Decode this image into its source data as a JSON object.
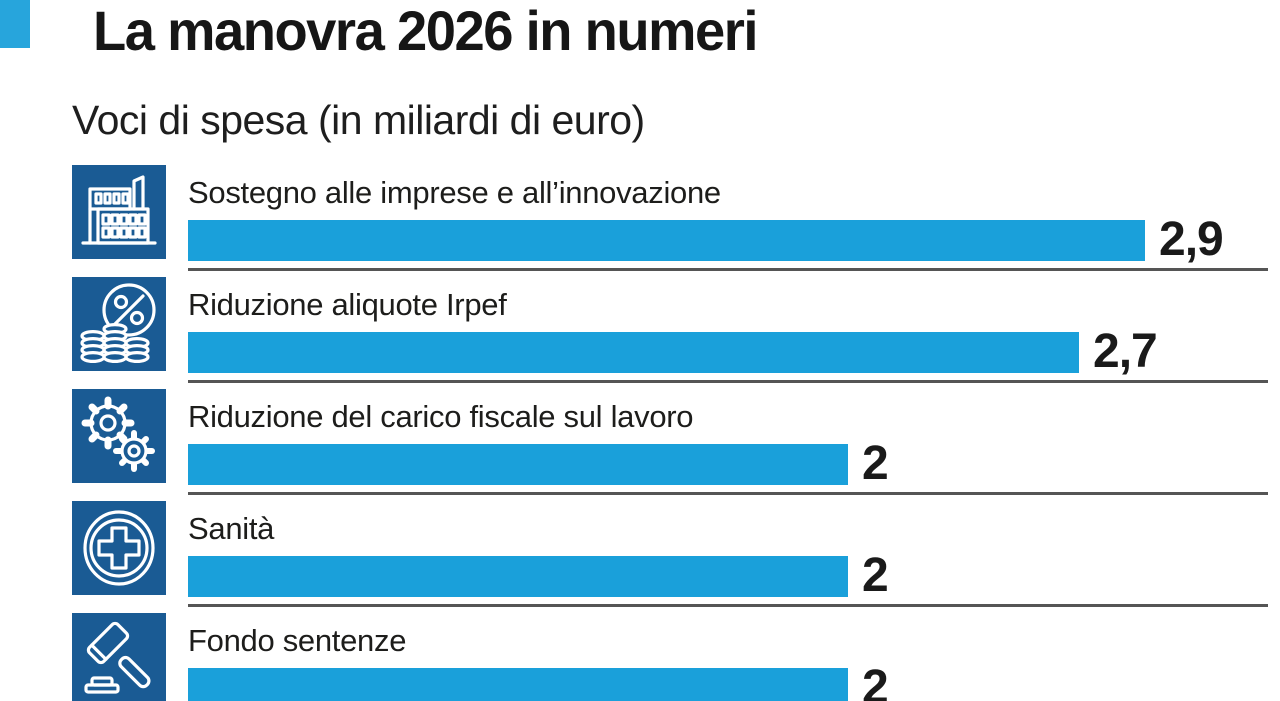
{
  "header": {
    "title": "La manovra 2026 in numeri",
    "subtitle": "Voci di spesa (in miliardi di euro)"
  },
  "colors": {
    "bar": "#1aa0da",
    "icon_bg": "#1a5b94",
    "accent_square": "#27a5dc",
    "divider": "#555555",
    "text": "#1d1d1b"
  },
  "chart_data": {
    "type": "bar",
    "orientation": "horizontal",
    "title": "La manovra 2026 in numeri",
    "subtitle": "Voci di spesa (in miliardi di euro)",
    "unit": "miliardi di euro",
    "categories": [
      "Sostegno alle imprese e all’innovazione",
      "Riduzione aliquote Irpef",
      "Riduzione del carico fiscale sul lavoro",
      "Sanità",
      "Fondo sentenze"
    ],
    "values": [
      2.9,
      2.7,
      2,
      2,
      2
    ],
    "value_labels": [
      "2,9",
      "2,7",
      "2",
      "2",
      "2"
    ],
    "icons": [
      "factory-icon",
      "coins-percent-icon",
      "gears-icon",
      "health-cross-icon",
      "gavel-icon"
    ],
    "xlim": [
      0,
      3.3
    ],
    "grid": false,
    "legend": false
  }
}
